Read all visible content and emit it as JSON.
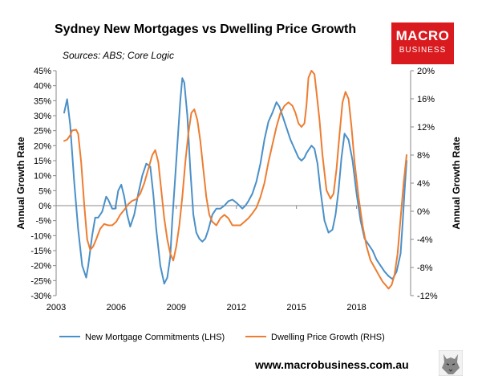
{
  "header": {
    "title": "Sydney New Mortgages vs Dwelling Price Growth",
    "sources": "Sources: ABS; Core Logic"
  },
  "logo": {
    "line1": "MACRO",
    "line2": "BUSINESS",
    "color": "#d91a1f"
  },
  "footer": {
    "website": "www.macrobusiness.com.au"
  },
  "chart_data": {
    "type": "line",
    "title": "Sydney New Mortgages vs Dwelling Price Growth",
    "ylabel_left": "Annual Growth Rate",
    "ylabel_right": "Annual Growth Rate",
    "xlim": [
      2003,
      2020.7
    ],
    "ylim_left": [
      -30,
      45
    ],
    "ylim_right": [
      -12,
      20
    ],
    "x_ticks": [
      2003,
      2006,
      2009,
      2012,
      2015,
      2018
    ],
    "x_tick_labels": [
      "2003",
      "2006",
      "2009",
      "2012",
      "2015",
      "2018"
    ],
    "y_left_ticks": [
      45,
      40,
      35,
      30,
      25,
      20,
      15,
      10,
      5,
      0,
      -5,
      -10,
      -15,
      -20,
      -25,
      -30
    ],
    "y_left_tick_labels": [
      "45%",
      "40%",
      "35%",
      "30%",
      "25%",
      "20%",
      "15%",
      "10%",
      "5%",
      "0%",
      "-5%",
      "-10%",
      "-15%",
      "-20%",
      "-25%",
      "-30%"
    ],
    "y_right_ticks": [
      20,
      16,
      12,
      8,
      4,
      0,
      -4,
      -8,
      -12
    ],
    "y_right_tick_labels": [
      "20%",
      "16%",
      "12%",
      "8%",
      "4%",
      "0%",
      "-4%",
      "-8%",
      "-12%"
    ],
    "grid": false,
    "legend": "bottom",
    "series": [
      {
        "name": "New Mortgage Commitments (LHS)",
        "axis": "left",
        "color": "#4a90c8",
        "x": [
          2003.4,
          2003.55,
          2003.7,
          2003.9,
          2004.1,
          2004.3,
          2004.5,
          2004.6,
          2004.8,
          2004.95,
          2005.1,
          2005.3,
          2005.5,
          2005.6,
          2005.8,
          2005.95,
          2006.1,
          2006.25,
          2006.4,
          2006.55,
          2006.7,
          2006.9,
          2007.1,
          2007.3,
          2007.5,
          2007.7,
          2007.85,
          2008.0,
          2008.2,
          2008.4,
          2008.55,
          2008.7,
          2008.8,
          2008.95,
          2009.1,
          2009.2,
          2009.3,
          2009.4,
          2009.55,
          2009.7,
          2009.85,
          2010.0,
          2010.15,
          2010.3,
          2010.45,
          2010.6,
          2010.8,
          2011.0,
          2011.2,
          2011.4,
          2011.6,
          2011.8,
          2012.0,
          2012.15,
          2012.3,
          2012.45,
          2012.6,
          2012.8,
          2013.0,
          2013.2,
          2013.4,
          2013.6,
          2013.8,
          2014.0,
          2014.15,
          2014.3,
          2014.5,
          2014.7,
          2014.9,
          2015.1,
          2015.25,
          2015.4,
          2015.5,
          2015.6,
          2015.75,
          2015.9,
          2016.05,
          2016.2,
          2016.4,
          2016.6,
          2016.8,
          2016.95,
          2017.1,
          2017.25,
          2017.4,
          2017.6,
          2017.8,
          2018.0,
          2018.2,
          2018.4,
          2018.6,
          2018.8,
          2019.0,
          2019.2,
          2019.4,
          2019.6,
          2019.8,
          2020.0,
          2020.2,
          2020.3,
          2020.4,
          2020.5
        ],
        "y": [
          31,
          35.5,
          27,
          8,
          -8,
          -20,
          -24,
          -20,
          -10,
          -4,
          -4,
          -2,
          3,
          2,
          -1,
          -1,
          5,
          7,
          3,
          -3,
          -7,
          -3,
          4,
          10,
          14,
          13,
          4,
          -8,
          -20,
          -26,
          -24,
          -17,
          -5,
          10,
          25,
          35,
          42.5,
          41,
          30,
          12,
          -3,
          -9,
          -11,
          -12,
          -11,
          -8,
          -3,
          -1,
          -1,
          0,
          1.5,
          2,
          1,
          0,
          -1,
          0,
          1.5,
          4,
          8,
          14,
          22,
          28,
          31,
          34.5,
          33,
          30,
          26,
          22,
          19,
          16,
          15,
          16,
          17.5,
          18.5,
          20,
          19,
          14,
          5,
          -5,
          -9,
          -8,
          -3,
          5,
          16,
          24,
          22,
          15,
          4,
          -5,
          -11,
          -13,
          -15,
          -18,
          -20,
          -22,
          -23.5,
          -24.5,
          -22,
          -16,
          -6,
          5,
          15
        ]
      },
      {
        "name": "Dwelling Price Growth (RHS)",
        "axis": "right",
        "color": "#ed7d31",
        "x": [
          2003.4,
          2003.55,
          2003.7,
          2003.8,
          2004.0,
          2004.1,
          2004.25,
          2004.4,
          2004.55,
          2004.7,
          2004.85,
          2005.0,
          2005.2,
          2005.4,
          2005.6,
          2005.8,
          2006.0,
          2006.2,
          2006.4,
          2006.6,
          2006.8,
          2007.0,
          2007.2,
          2007.4,
          2007.6,
          2007.8,
          2007.95,
          2008.1,
          2008.25,
          2008.4,
          2008.55,
          2008.7,
          2008.85,
          2009.0,
          2009.15,
          2009.3,
          2009.45,
          2009.6,
          2009.75,
          2009.9,
          2010.05,
          2010.2,
          2010.35,
          2010.5,
          2010.65,
          2010.8,
          2011.0,
          2011.2,
          2011.4,
          2011.6,
          2011.8,
          2012.0,
          2012.2,
          2012.4,
          2012.6,
          2012.8,
          2013.0,
          2013.2,
          2013.4,
          2013.6,
          2013.8,
          2014.0,
          2014.2,
          2014.4,
          2014.6,
          2014.8,
          2014.95,
          2015.1,
          2015.25,
          2015.4,
          2015.5,
          2015.6,
          2015.75,
          2015.9,
          2016.0,
          2016.15,
          2016.3,
          2016.5,
          2016.7,
          2016.85,
          2017.0,
          2017.15,
          2017.3,
          2017.45,
          2017.6,
          2017.75,
          2017.9,
          2018.1,
          2018.3,
          2018.5,
          2018.7,
          2018.9,
          2019.1,
          2019.3,
          2019.45,
          2019.6,
          2019.75,
          2019.9,
          2020.05,
          2020.2,
          2020.35,
          2020.5
        ],
        "y": [
          10,
          10.2,
          10.8,
          11.5,
          11.6,
          11,
          7,
          1,
          -4,
          -5.5,
          -5,
          -4,
          -2.5,
          -1.8,
          -2,
          -2,
          -1.5,
          -0.5,
          0.2,
          1,
          1.5,
          1.7,
          2.5,
          4,
          6,
          8,
          8.7,
          7,
          3,
          -1,
          -4,
          -6,
          -7,
          -5,
          -2,
          2,
          7,
          11,
          14,
          14.5,
          13,
          10,
          6,
          2,
          -0.5,
          -1.5,
          -2,
          -1,
          -0.5,
          -1,
          -2,
          -2,
          -2,
          -1.5,
          -1,
          -0.3,
          0.5,
          2,
          4,
          7,
          9.5,
          12,
          14,
          15,
          15.5,
          15,
          14,
          12.5,
          12,
          12.5,
          15,
          19,
          20,
          19.5,
          17,
          13,
          8,
          3,
          1.8,
          2.5,
          6,
          11,
          15.5,
          17,
          16,
          12,
          7,
          2,
          -2,
          -5,
          -7,
          -8,
          -9,
          -10,
          -10.5,
          -11,
          -10.5,
          -9,
          -6,
          -1,
          4,
          8
        ]
      }
    ]
  }
}
